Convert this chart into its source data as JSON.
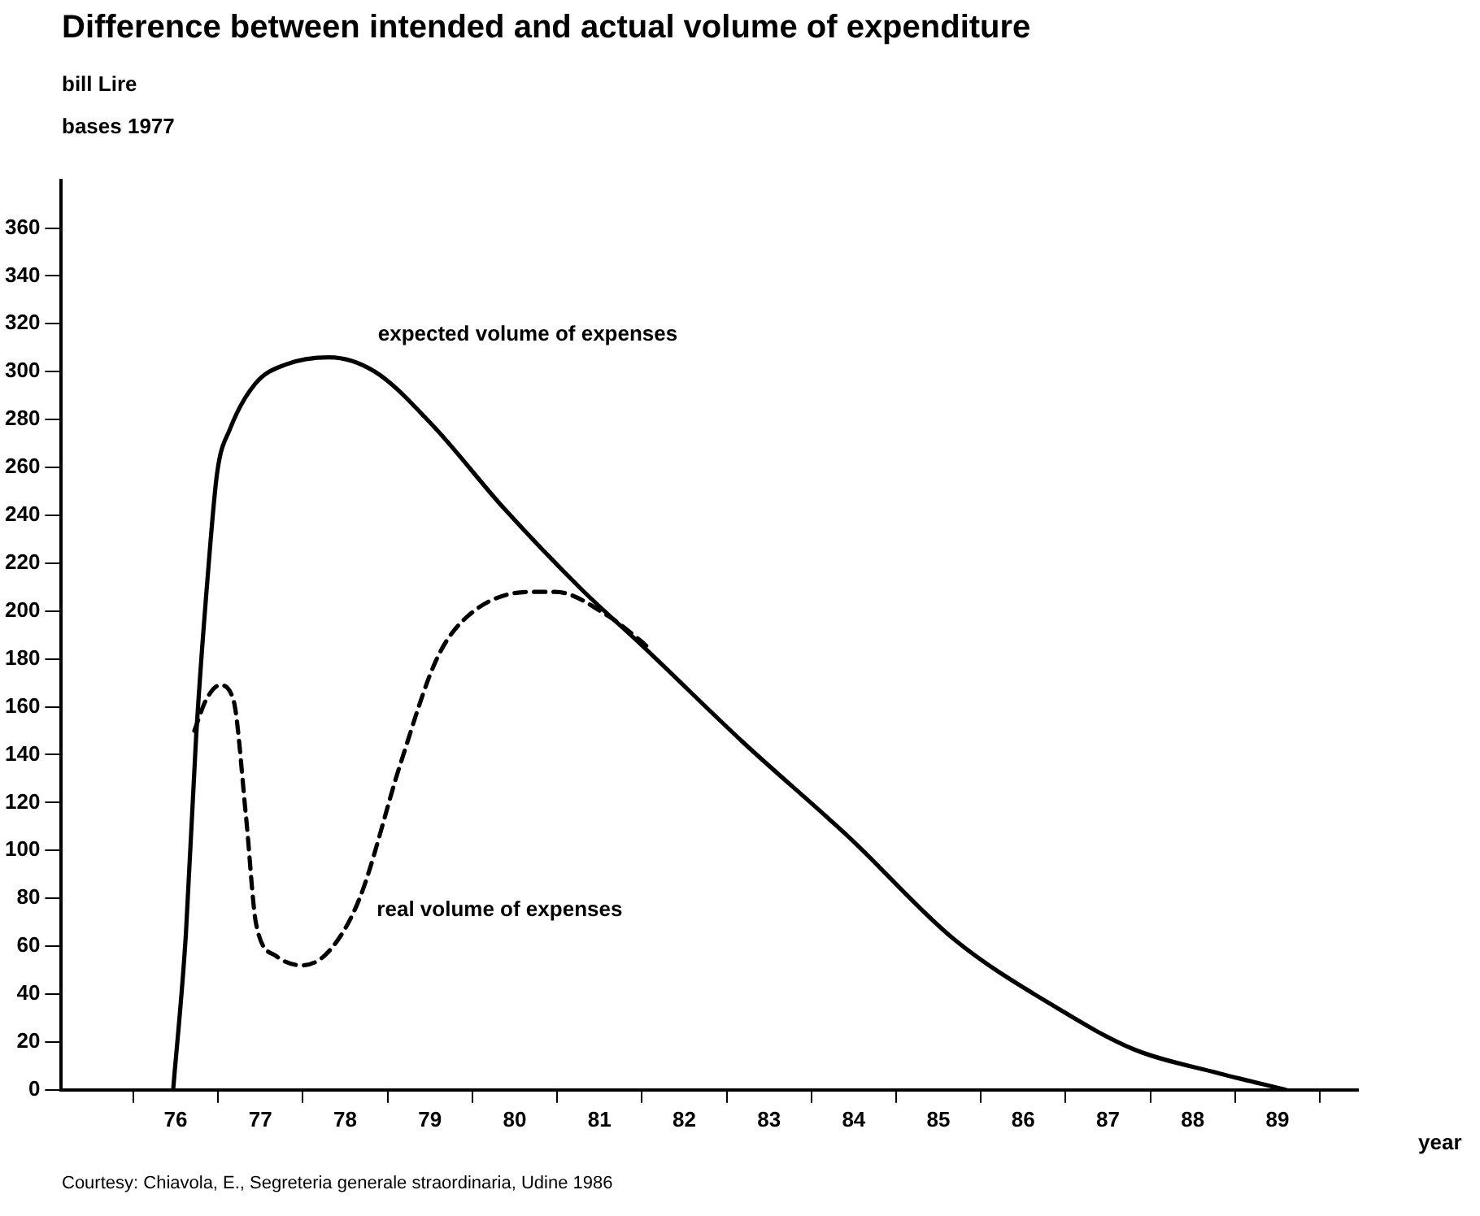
{
  "chart_data": {
    "type": "line",
    "title": "Difference between intended and actual volume of expenditure",
    "subtitle": "bases 1977",
    "ylabel": "bill Lire",
    "xlabel": "year",
    "annotations": [
      "Courtesy: Chiavola, E., Segreteria generale straordinaria, Udine 1986"
    ],
    "xlim": [
      74.65,
      89.95
    ],
    "ylim": [
      0,
      380
    ],
    "xticks": [
      {
        "value": 75.5,
        "label": null
      },
      76,
      {
        "value": 76.5,
        "label": null
      },
      77,
      {
        "value": 77.5,
        "label": null
      },
      78,
      {
        "value": 78.5,
        "label": null
      },
      79,
      {
        "value": 79.5,
        "label": null
      },
      80,
      {
        "value": 80.5,
        "label": null
      },
      81,
      {
        "value": 81.5,
        "label": null
      },
      82,
      {
        "value": 82.5,
        "label": null
      },
      83,
      {
        "value": 83.5,
        "label": null
      },
      84,
      {
        "value": 84.5,
        "label": null
      },
      85,
      {
        "value": 85.5,
        "label": null
      },
      86,
      {
        "value": 86.5,
        "label": null
      },
      87,
      {
        "value": 87.5,
        "label": null
      },
      88,
      {
        "value": 88.5,
        "label": null
      },
      89,
      {
        "value": 89.5,
        "label": null
      }
    ],
    "yticks": [
      0,
      20,
      40,
      60,
      80,
      100,
      120,
      140,
      160,
      180,
      200,
      220,
      240,
      260,
      280,
      300,
      320,
      340,
      360
    ],
    "grid": false,
    "legend": false,
    "marker": "none",
    "series": [
      {
        "name": "expected volume of expenses",
        "color": "#000000",
        "line_style": "solid",
        "x": [
          75.97,
          76.12,
          76.24,
          76.39,
          76.49,
          76.64,
          76.94,
          77.3,
          77.81,
          78.35,
          79.02,
          79.87,
          80.79,
          81.52,
          82.7,
          83.96,
          85.18,
          86.41,
          87.3,
          88.3,
          89.1
        ],
        "values": [
          0,
          65,
          147,
          220,
          258,
          276,
          295,
          303,
          306,
          300,
          278,
          243,
          209,
          185,
          145,
          105,
          63,
          34,
          17,
          7,
          0
        ]
      },
      {
        "name": "real volume of expenses",
        "color": "#000000",
        "line_style": "dashed",
        "x": [
          76.22,
          76.36,
          76.52,
          76.68,
          76.83,
          76.95,
          77.18,
          77.49,
          77.81,
          78.17,
          78.65,
          79.08,
          79.45,
          80.18,
          80.48,
          81.1,
          81.47,
          81.6
        ],
        "values": [
          150,
          163,
          169,
          163,
          114,
          69,
          56,
          52,
          58,
          80,
          136,
          180,
          198,
          208,
          208,
          198,
          188,
          184
        ]
      }
    ]
  }
}
